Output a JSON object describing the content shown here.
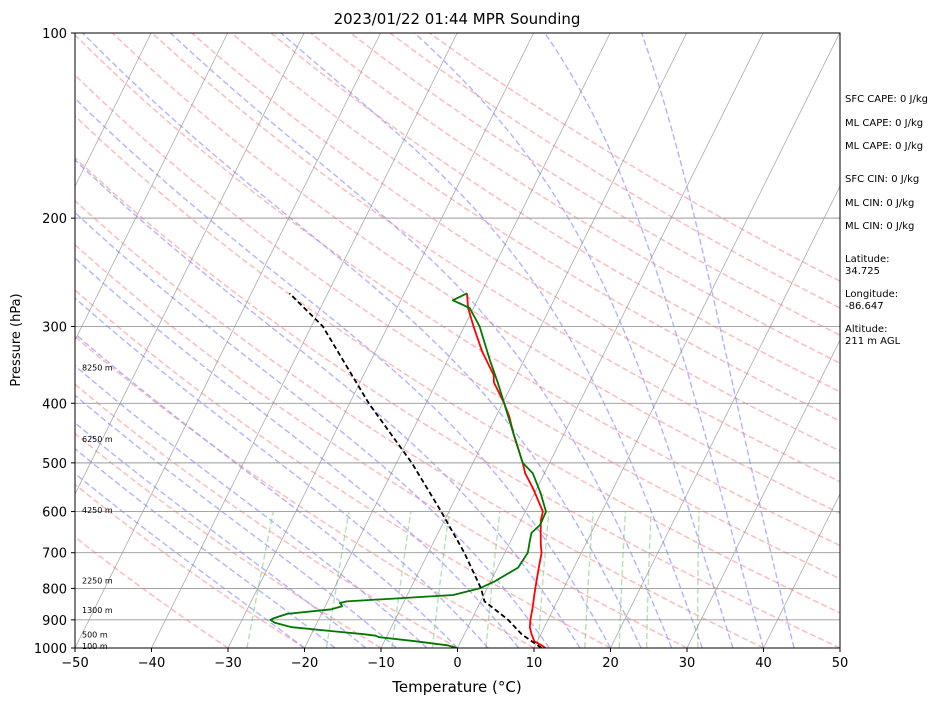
{
  "chart_data": {
    "type": "line",
    "title": "2023/01/22 01:44 MPR Sounding",
    "xlabel": "Temperature (°C)",
    "ylabel": "Pressure (hPa)",
    "xlim": [
      -50,
      50
    ],
    "ylim": [
      1000,
      100
    ],
    "y_scale": "log",
    "grid": true,
    "xticks": [
      "−50",
      "−40",
      "−30",
      "−20",
      "−10",
      "0",
      "10",
      "20",
      "30",
      "40",
      "50"
    ],
    "yticks": [
      "100",
      "200",
      "300",
      "400",
      "500",
      "600",
      "700",
      "800",
      "900",
      "1000"
    ],
    "height_labels": [
      {
        "text": "100 m",
        "p": 993
      },
      {
        "text": "500 m",
        "p": 950
      },
      {
        "text": "1300 m",
        "p": 868
      },
      {
        "text": "2250 m",
        "p": 777
      },
      {
        "text": "4250 m",
        "p": 597
      },
      {
        "text": "6250 m",
        "p": 457
      },
      {
        "text": "8250 m",
        "p": 350
      }
    ],
    "series": [
      {
        "role": "temperature",
        "color": "#ff0000",
        "points": [
          [
            1000,
            11.5
          ],
          [
            990,
            10.8
          ],
          [
            975,
            9.6
          ],
          [
            950,
            8.8
          ],
          [
            925,
            8.1
          ],
          [
            900,
            7.7
          ],
          [
            860,
            7.2
          ],
          [
            820,
            6.6
          ],
          [
            780,
            6.0
          ],
          [
            740,
            5.4
          ],
          [
            700,
            4.8
          ],
          [
            680,
            4.2
          ],
          [
            650,
            3.4
          ],
          [
            620,
            2.6
          ],
          [
            600,
            2.3
          ],
          [
            580,
            1.2
          ],
          [
            550,
            -0.5
          ],
          [
            520,
            -2.5
          ],
          [
            500,
            -3.5
          ],
          [
            450,
            -6.5
          ],
          [
            420,
            -8.3
          ],
          [
            400,
            -9.8
          ],
          [
            370,
            -12.5
          ],
          [
            360,
            -13.0
          ],
          [
            330,
            -16.0
          ],
          [
            300,
            -18.8
          ],
          [
            280,
            -20.7
          ],
          [
            265,
            -21.8
          ]
        ]
      },
      {
        "role": "dewpoint",
        "color": "#007700",
        "points": [
          [
            1000,
            -0.1
          ],
          [
            990,
            -1.5
          ],
          [
            975,
            -6.0
          ],
          [
            960,
            -11.0
          ],
          [
            955,
            -11.5
          ],
          [
            950,
            -13.0
          ],
          [
            940,
            -17.0
          ],
          [
            925,
            -23.0
          ],
          [
            910,
            -25.5
          ],
          [
            900,
            -26.3
          ],
          [
            895,
            -26.0
          ],
          [
            880,
            -24.5
          ],
          [
            865,
            -19.0
          ],
          [
            855,
            -17.8
          ],
          [
            850,
            -18.0
          ],
          [
            845,
            -18.3
          ],
          [
            840,
            -17.5
          ],
          [
            820,
            -4.0
          ],
          [
            800,
            -1.0
          ],
          [
            780,
            0.5
          ],
          [
            740,
            2.7
          ],
          [
            700,
            3.0
          ],
          [
            670,
            2.5
          ],
          [
            650,
            2.2
          ],
          [
            630,
            2.8
          ],
          [
            600,
            2.7
          ],
          [
            560,
            0.8
          ],
          [
            520,
            -1.5
          ],
          [
            500,
            -3.5
          ],
          [
            450,
            -6.5
          ],
          [
            400,
            -9.8
          ],
          [
            370,
            -12.0
          ],
          [
            340,
            -14.5
          ],
          [
            300,
            -18.0
          ],
          [
            280,
            -20.5
          ],
          [
            272,
            -23.2
          ],
          [
            265,
            -21.8
          ]
        ]
      },
      {
        "role": "parcel",
        "color": "#000000",
        "points": [
          [
            1000,
            11.0
          ],
          [
            950,
            7.5
          ],
          [
            900,
            4.8
          ],
          [
            860,
            2.0
          ],
          [
            840,
            0.5
          ],
          [
            800,
            -0.8
          ],
          [
            700,
            -5.3
          ],
          [
            600,
            -11.0
          ],
          [
            500,
            -18.0
          ],
          [
            400,
            -27.5
          ],
          [
            300,
            -38.5
          ],
          [
            265,
            -45.0
          ]
        ]
      }
    ],
    "stats": [
      "SFC CAPE: 0 J/kg",
      "ML CAPE: 0 J/kg",
      "ML CAPE: 0 J/kg",
      "SFC CIN: 0 J/kg",
      "ML CIN: 0 J/kg",
      "ML CIN: 0 J/kg",
      "Latitude:",
      "34.725",
      "Longitude:",
      "-86.647",
      "Altitude:",
      "211 m AGL"
    ],
    "colors": {
      "dry_adiabat": "#ff9999",
      "moist_adiabat": "#9999ff",
      "mixing_ratio": "#88cc88",
      "isotherm": "#888888",
      "isobar": "#999999",
      "temperature": "#ff0000",
      "dewpoint": "#007700",
      "parcel": "#000000"
    }
  }
}
